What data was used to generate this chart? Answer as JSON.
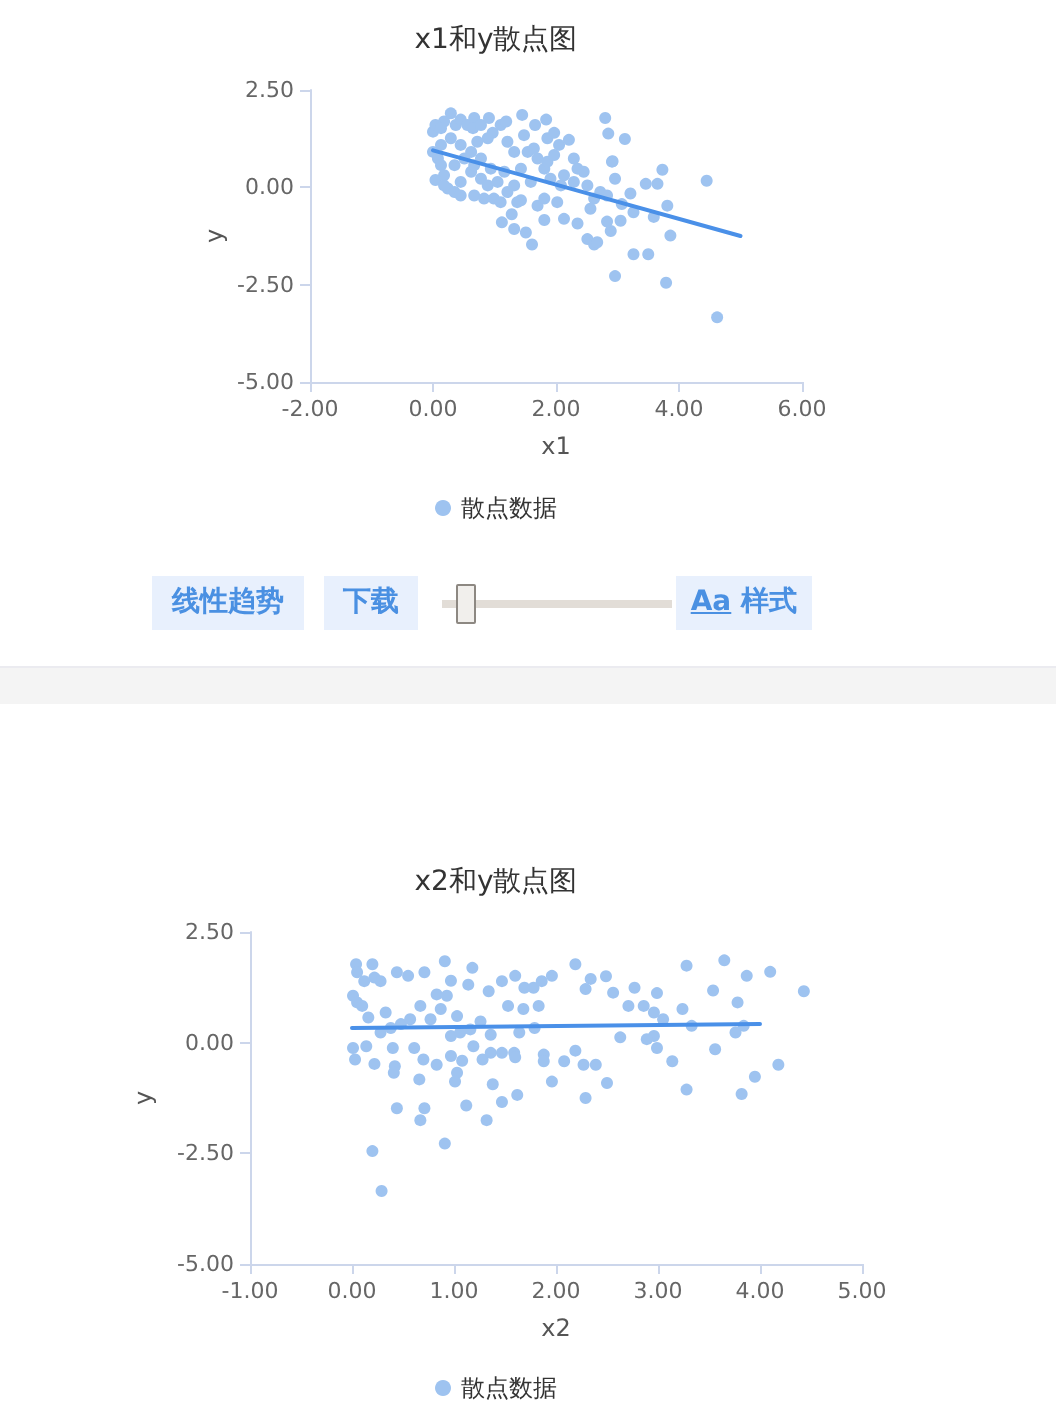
{
  "chart_data": [
    {
      "type": "scatter",
      "title": "x1和y散点图",
      "xlabel": "x1",
      "ylabel": "y",
      "xlim": [
        -2,
        6
      ],
      "xticks": [
        {
          "value": -2,
          "label": "-2.00"
        },
        {
          "value": 0,
          "label": "0.00"
        },
        {
          "value": 2,
          "label": "2.00"
        },
        {
          "value": 4,
          "label": "4.00"
        },
        {
          "value": 6,
          "label": "6.00"
        }
      ],
      "ylim": [
        -5,
        2.5
      ],
      "yticks": [
        {
          "value": -5,
          "label": "-5.00"
        },
        {
          "value": -2.5,
          "label": "-2.50"
        },
        {
          "value": 0,
          "label": "0.00"
        },
        {
          "value": 2.5,
          "label": "2.50"
        }
      ],
      "grid": false,
      "legend": "bottom",
      "annotations": [
        "线性趋势",
        "下载",
        "Aa 样式"
      ],
      "series": [
        {
          "name": "散点数据",
          "type": "scatter",
          "marker": "circle",
          "color": "#9ec3f0",
          "x": [
            0.29,
            0.18,
            0,
            0.04,
            0.13,
            0.37,
            0.45,
            0.56,
            0.67,
            0.65,
            0.78,
            0.91,
            0.97,
            1.1,
            1.19,
            1.45,
            1.66,
            1.84,
            1.86,
            1.97,
            2.05,
            2.21,
            1.48,
            1.21,
            0.89,
            0,
            0.08,
            0.13,
            0.18,
            0.04,
            0.24,
            0.35,
            0.45,
            0.62,
            0.78,
            0.89,
            0.99,
            1.1,
            1.21,
            1.32,
            1.37,
            1.43,
            1.54,
            1.59,
            1.7,
            1.81,
            1.86,
            1.91,
            1.97,
            2.08,
            2.13,
            2.29,
            2.35,
            2.45,
            2.51,
            2.62,
            2.72,
            2.83,
            2.91,
            2.96,
            3.07,
            3.21,
            3.46,
            3.65,
            3.73,
            3.81,
            3.59,
            3.26,
            3.05,
            2.89,
            2.83,
            2.56,
            2.35,
            2.13,
            1.81,
            1.7,
            1.43,
            1.28,
            1.12,
            1.32,
            1.51,
            1.61,
            2.51,
            2.62,
            2.67,
            3.26,
            3.5,
            3.86,
            2.96,
            3.79,
            4.62,
            4.45,
            2.8,
            2.85,
            3.12,
            2.92,
            0.13,
            0.29,
            0.45,
            0.62,
            0.72,
            0.35,
            0.51,
            0.67,
            0.78,
            0.94,
            1.05,
            0.67,
            0.83,
            0.45,
            0.18,
            1.16,
            1.32,
            1.64,
            1.81,
            2.02,
            2.29
          ],
          "values": [
            1.9,
            1.69,
            1.43,
            1.6,
            1.52,
            1.6,
            1.74,
            1.6,
            1.78,
            1.52,
            1.6,
            1.78,
            1.4,
            1.6,
            1.69,
            1.86,
            1.6,
            1.74,
            1.26,
            1.4,
            1.09,
            1.22,
            1.34,
            1.17,
            1.26,
            0.91,
            0.74,
            0.57,
            0.31,
            0.19,
            -0.03,
            -0.12,
            0.14,
            0.4,
            0.22,
            0.05,
            -0.29,
            -0.38,
            -0.12,
            0.05,
            -0.38,
            0.48,
            0.91,
            0.14,
            0.74,
            0.48,
            0.66,
            0.22,
            0.83,
            0.05,
            0.31,
            0.74,
            0.48,
            0.4,
            0.05,
            -0.29,
            -0.12,
            -0.21,
            0.66,
            0.22,
            -0.43,
            -0.16,
            0.09,
            0.09,
            0.45,
            -0.47,
            -0.76,
            -0.64,
            -0.86,
            -1.12,
            -0.88,
            -0.55,
            -0.93,
            -0.81,
            -0.84,
            -0.47,
            -0.33,
            -0.69,
            -0.9,
            -1.07,
            -1.16,
            -1.47,
            -1.33,
            -1.47,
            -1.41,
            -1.72,
            -1.72,
            -1.24,
            -2.28,
            -2.45,
            -3.34,
            0.17,
            1.78,
            1.38,
            1.24,
            0.67,
            1.09,
            1.26,
            1.09,
            0.91,
            1.17,
            0.57,
            0.74,
            0.57,
            0.74,
            0.48,
            0.14,
            -0.21,
            -0.29,
            -0.21,
            0.05,
            0.4,
            0.91,
            1.0,
            -0.29,
            -0.38,
            0.14
          ]
        },
        {
          "type": "line",
          "marker": "none",
          "color": "#4a90e8",
          "x": [
            0,
            5.0
          ],
          "values": [
            0.95,
            -1.25
          ]
        }
      ]
    },
    {
      "type": "scatter",
      "title": "x2和y散点图",
      "xlabel": "x2",
      "ylabel": "y",
      "xlim": [
        -1,
        5
      ],
      "xticks": [
        {
          "value": -1,
          "label": "-1.00"
        },
        {
          "value": 0,
          "label": "0.00"
        },
        {
          "value": 1,
          "label": "1.00"
        },
        {
          "value": 2,
          "label": "2.00"
        },
        {
          "value": 3,
          "label": "3.00"
        },
        {
          "value": 4,
          "label": "4.00"
        },
        {
          "value": 5,
          "label": "5.00"
        }
      ],
      "ylim": [
        -5,
        2.5
      ],
      "yticks": [
        {
          "value": -5,
          "label": "-5.00"
        },
        {
          "value": -2.5,
          "label": "-2.50"
        },
        {
          "value": 0,
          "label": "0.00"
        },
        {
          "value": 2.5,
          "label": "2.50"
        }
      ],
      "grid": false,
      "legend": "bottom",
      "series": [
        {
          "name": "散点数据",
          "type": "scatter",
          "marker": "circle",
          "color": "#9ec3f0",
          "x": [
            0.04,
            0.05,
            0.2,
            0.22,
            0.12,
            0.28,
            0.44,
            0.55,
            0.71,
            0.91,
            0.97,
            1.18,
            1.14,
            1.34,
            1.47,
            1.6,
            1.69,
            1.78,
            1.86,
            1.96,
            2.19,
            2.34,
            2.49,
            2.29,
            2.56,
            3.28,
            3.65,
            3.87,
            4.1,
            4.43,
            3.54,
            3.78,
            3.24,
            2.99,
            2.71,
            2.77,
            2.86,
            2.96,
            0.01,
            0.05,
            0.1,
            0.16,
            0.33,
            0.28,
            0.38,
            0.48,
            0.57,
            0.67,
            0.77,
            0.87,
            0.83,
            0.93,
            0.97,
            1.03,
            1.06,
            1.16,
            1.26,
            1.36,
            1.53,
            1.68,
            1.79,
            1.64,
            1.83,
            3.05,
            3.33,
            2.96,
            2.63,
            2.89,
            3.84,
            3.76,
            0.01,
            0.03,
            0.14,
            0.22,
            0.4,
            0.42,
            0.41,
            0.61,
            0.7,
            0.83,
            0.97,
            1.03,
            1.01,
            1.08,
            1.19,
            1.28,
            1.36,
            1.47,
            1.59,
            1.6,
            1.88,
            1.88,
            1.96,
            2.08,
            2.19,
            2.27,
            2.39,
            2.29,
            2.5,
            2.99,
            3.14,
            3.28,
            3.56,
            3.82,
            3.95,
            4.18,
            0.66,
            1.38,
            0.44,
            0.71,
            0.67,
            1.12,
            1.32,
            1.47,
            1.62,
            0.91,
            0.2,
            0.29
          ],
          "values": [
            1.77,
            1.59,
            1.77,
            1.47,
            1.39,
            1.39,
            1.59,
            1.51,
            1.59,
            1.84,
            1.4,
            1.69,
            1.31,
            1.16,
            1.39,
            1.51,
            1.24,
            1.24,
            1.39,
            1.51,
            1.77,
            1.44,
            1.5,
            1.21,
            1.13,
            1.74,
            1.86,
            1.51,
            1.6,
            1.16,
            1.18,
            0.91,
            0.76,
            1.12,
            0.83,
            1.24,
            0.83,
            0.68,
            1.06,
            0.91,
            0.83,
            0.57,
            0.68,
            0.23,
            0.33,
            0.42,
            0.53,
            0.83,
            0.53,
            0.76,
            1.09,
            1.06,
            0.15,
            0.6,
            0.23,
            0.3,
            0.48,
            0.18,
            0.83,
            0.76,
            0.33,
            0.23,
            0.83,
            0.53,
            0.38,
            0.15,
            0.12,
            0.08,
            0.38,
            0.23,
            -0.12,
            -0.38,
            -0.08,
            -0.48,
            -0.12,
            -0.53,
            -0.68,
            -0.12,
            -0.38,
            -0.5,
            -0.3,
            -0.68,
            -0.88,
            -0.41,
            -0.08,
            -0.38,
            -0.23,
            -0.23,
            -0.23,
            -0.33,
            -0.27,
            -0.42,
            -0.88,
            -0.42,
            -0.18,
            -0.5,
            -0.5,
            -1.25,
            -0.91,
            -0.12,
            -0.42,
            -1.06,
            -0.15,
            -1.16,
            -0.77,
            -0.5,
            -0.83,
            -0.94,
            -1.48,
            -1.48,
            -1.75,
            -1.42,
            -1.75,
            -1.34,
            -1.18,
            -2.28,
            -2.45,
            -3.35
          ]
        },
        {
          "type": "line",
          "marker": "none",
          "color": "#4a90e8",
          "x": [
            0,
            4.0
          ],
          "values": [
            0.33,
            0.42
          ]
        }
      ]
    }
  ]
}
